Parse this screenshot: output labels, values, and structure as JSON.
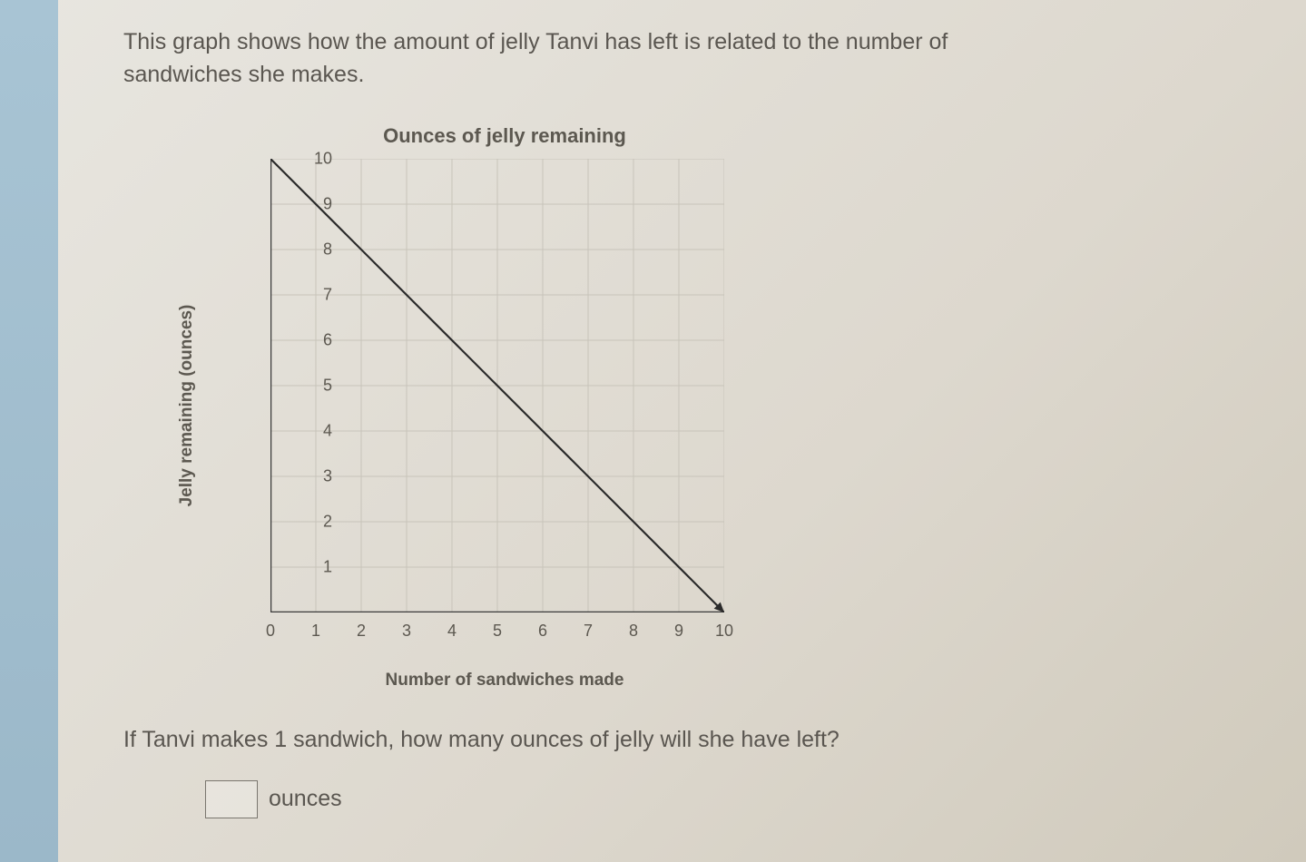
{
  "prompt_line1": "This graph shows how the amount of jelly Tanvi has left is related to the number of",
  "prompt_line2": "sandwiches she makes.",
  "chart": {
    "type": "line",
    "title": "Ounces of jelly remaining",
    "xlabel": "Number of sandwiches made",
    "ylabel": "Jelly remaining (ounces)",
    "xlim": [
      0,
      10
    ],
    "ylim": [
      0,
      10
    ],
    "xticks": [
      0,
      1,
      2,
      3,
      4,
      5,
      6,
      7,
      8,
      9,
      10
    ],
    "yticks": [
      1,
      2,
      3,
      4,
      5,
      6,
      7,
      8,
      9,
      10
    ],
    "grid_color": "#c8c4ba",
    "axis_color": "#3a3a3a",
    "line_color": "#2a2a2a",
    "line_width": 2.2,
    "background_color": "transparent",
    "data_points": [
      {
        "x": 0,
        "y": 10
      },
      {
        "x": 10,
        "y": 0
      }
    ],
    "arrow_end": true,
    "arrow_start_y": true,
    "label_fontsize": 19,
    "tick_fontsize": 18,
    "title_fontsize": 22
  },
  "question": "If Tanvi makes 1 sandwich, how many ounces of jelly will she have left?",
  "answer_unit": "ounces",
  "answer_value": ""
}
